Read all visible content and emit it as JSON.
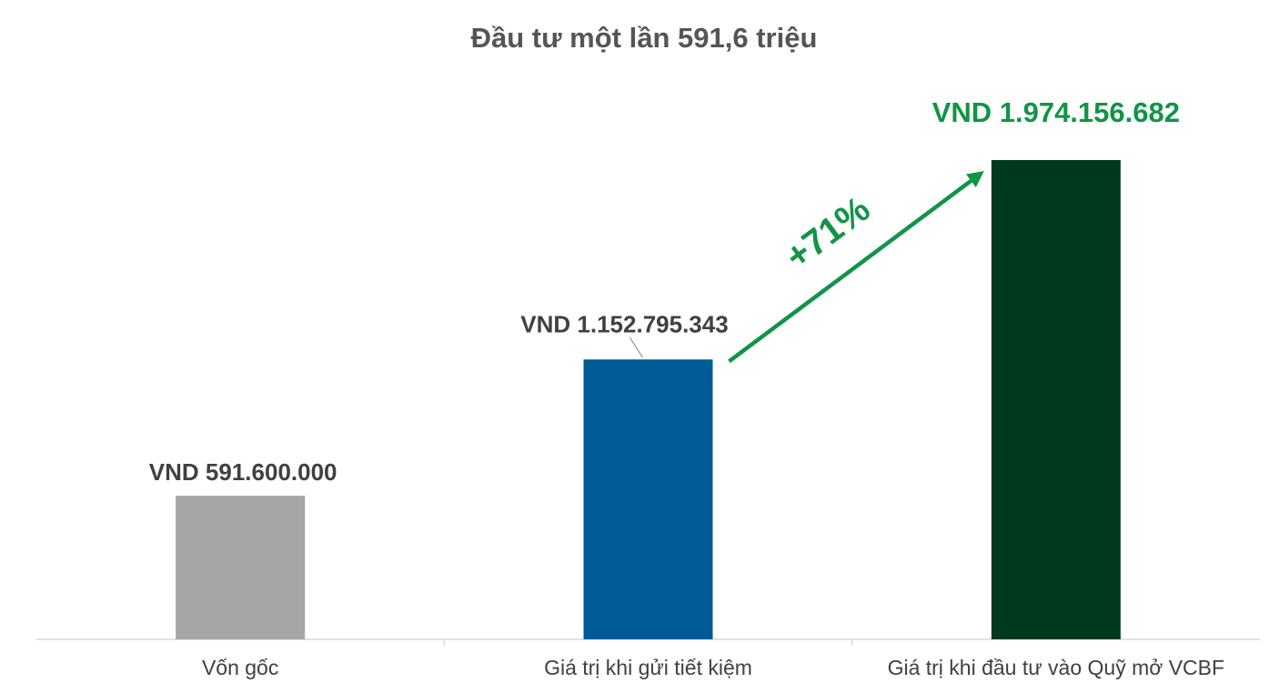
{
  "chart_data": {
    "type": "bar",
    "title": "Đầu tư một lần 591,6 triệu",
    "xlabel": "",
    "ylabel": "",
    "categories": [
      "Vốn gốc",
      "Giá trị khi gửi tiết kiệm",
      "Giá trị khi đầu tư vào Quỹ mở VCBF"
    ],
    "values": [
      591600000,
      1152795343,
      1974156682
    ],
    "data_labels": [
      "VND 591.600.000",
      "VND 1.152.795.343",
      "VND 1.974.156.682"
    ],
    "bar_colors": [
      "#a6a6a6",
      "#005a96",
      "#003a1e"
    ],
    "highlight_label_color": "#119447",
    "annotation": {
      "text": "+71%",
      "from": 1,
      "to": 2,
      "color": "#119447"
    },
    "grid": false,
    "legend": "none"
  }
}
